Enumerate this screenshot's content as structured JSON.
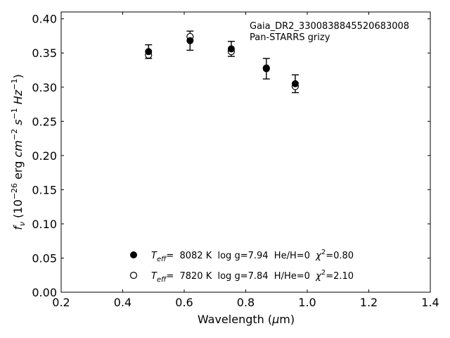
{
  "chart_data": {
    "type": "scatter",
    "title": "",
    "annotation": {
      "line1": "Gaia_DR2_3300838845520683008",
      "line2": "Pan-STARRS grizy"
    },
    "xlabel": {
      "prefix": "Wavelength (",
      "symbol": "μ",
      "suffix": "m)"
    },
    "ylabel": {
      "f": "f",
      "sub": "ν",
      "open": " (10",
      "exp1": "−26",
      "mid": " erg ",
      "cm": "cm",
      "exp2": "−2",
      "s": " s",
      "exp3": "−1",
      "hz": " Hz",
      "exp4": "−1",
      "close": ")"
    },
    "xlim": [
      0.2,
      1.4
    ],
    "ylim": [
      0.0,
      0.41
    ],
    "xticks": [
      "0.2",
      "0.4",
      "0.6",
      "0.8",
      "1.0",
      "1.2",
      "1.4"
    ],
    "yticks": [
      "0.00",
      "0.05",
      "0.10",
      "0.15",
      "0.20",
      "0.25",
      "0.30",
      "0.35",
      "0.40"
    ],
    "grid": false,
    "series": [
      {
        "marker": "filled-circle",
        "color": "#000000",
        "x": [
          0.484,
          0.619,
          0.753,
          0.867,
          0.961
        ],
        "y": [
          0.352,
          0.368,
          0.356,
          0.327,
          0.305
        ],
        "err": [
          0.01,
          0.014,
          0.011,
          0.015,
          0.013
        ]
      },
      {
        "marker": "open-circle",
        "color": "#000000",
        "x": [
          0.484,
          0.619,
          0.753,
          0.867,
          0.961
        ],
        "y": [
          0.347,
          0.374,
          0.352,
          0.328,
          0.301
        ]
      }
    ],
    "legend": {
      "placement": "lower-center",
      "entries": [
        {
          "marker": "filled-circle",
          "t": "T",
          "tsub": "eff",
          "a": "=  8082 K  log g=7.94  He/H=0  ",
          "chi": "χ",
          "chisup": "2",
          "b": "=0.80"
        },
        {
          "marker": "open-circle",
          "t": "T",
          "tsub": "eff",
          "a": "=  7820 K  log g=7.84  H/He=0  ",
          "chi": "χ",
          "chisup": "2",
          "b": "=2.10"
        }
      ]
    }
  }
}
